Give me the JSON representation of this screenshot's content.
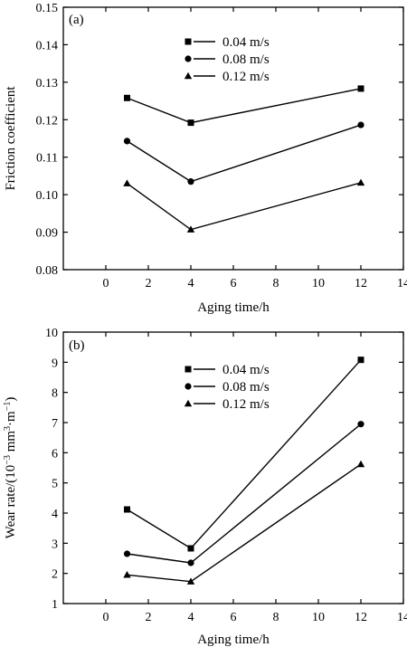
{
  "chart_data": [
    {
      "type": "line",
      "panel_label": "(a)",
      "x": [
        1,
        4,
        12
      ],
      "xlabel": "Aging time/h",
      "ylabel": "Friction coefficient",
      "xlim": [
        -2,
        14
      ],
      "ylim": [
        0.08,
        0.15
      ],
      "xticks": [
        "0",
        "2",
        "4",
        "6",
        "8",
        "10",
        "12",
        "14"
      ],
      "yticks": [
        "0.08",
        "0.09",
        "0.10",
        "0.11",
        "0.12",
        "0.13",
        "0.14",
        "0.15"
      ],
      "grid": false,
      "legend_position": "top-center",
      "series": [
        {
          "name": "0.04 m/s",
          "marker": "square",
          "values": [
            0.1258,
            0.1192,
            0.1283
          ]
        },
        {
          "name": "0.08 m/s",
          "marker": "circle",
          "values": [
            0.1143,
            0.1035,
            0.1186
          ]
        },
        {
          "name": "0.12 m/s",
          "marker": "triangle",
          "values": [
            0.103,
            0.0907,
            0.1032
          ]
        }
      ]
    },
    {
      "type": "line",
      "panel_label": "(b)",
      "x": [
        1,
        4,
        12
      ],
      "xlabel": "Aging time/h",
      "ylabel_main": "Wear rate/(10",
      "ylabel_exp1": "−3",
      "ylabel_mid": " mm",
      "ylabel_exp2": "3",
      "ylabel_mid2": "·m",
      "ylabel_exp3": "−1",
      "ylabel_end": ")",
      "xlim": [
        -2,
        14
      ],
      "ylim": [
        1,
        10
      ],
      "xticks": [
        "0",
        "2",
        "4",
        "6",
        "8",
        "10",
        "12",
        "14"
      ],
      "yticks": [
        "1",
        "2",
        "3",
        "4",
        "5",
        "6",
        "7",
        "8",
        "9",
        "10"
      ],
      "grid": false,
      "legend_position": "top-center",
      "series": [
        {
          "name": "0.04 m/s",
          "marker": "square",
          "values": [
            4.12,
            2.83,
            9.08
          ]
        },
        {
          "name": "0.08 m/s",
          "marker": "circle",
          "values": [
            2.65,
            2.35,
            6.95
          ]
        },
        {
          "name": "0.12 m/s",
          "marker": "triangle",
          "values": [
            1.95,
            1.73,
            5.62
          ]
        }
      ]
    }
  ]
}
